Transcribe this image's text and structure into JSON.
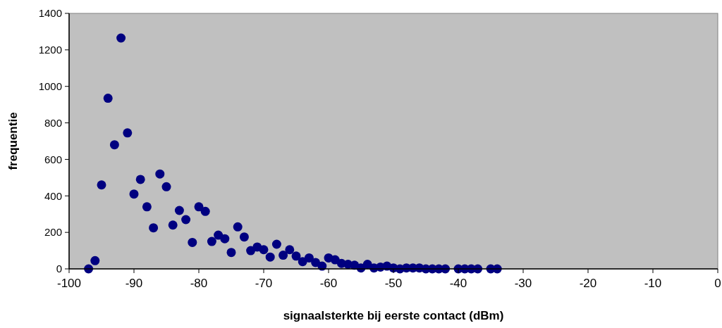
{
  "chart_data": {
    "type": "scatter",
    "xlabel": "signaalsterkte bij eerste contact (dBm)",
    "ylabel": "frequentie",
    "x": [
      -97,
      -96,
      -95,
      -94,
      -93,
      -92,
      -91,
      -90,
      -89,
      -88,
      -87,
      -86,
      -85,
      -84,
      -83,
      -82,
      -81,
      -80,
      -79,
      -78,
      -77,
      -76,
      -75,
      -74,
      -73,
      -72,
      -71,
      -70,
      -69,
      -68,
      -67,
      -66,
      -65,
      -64,
      -63,
      -62,
      -61,
      -60,
      -59,
      -58,
      -57,
      -56,
      -55,
      -54,
      -53,
      -52,
      -51,
      -50,
      -49,
      -48,
      -47,
      -46,
      -45,
      -44,
      -43,
      -42,
      -40,
      -39,
      -38,
      -37,
      -35,
      -34
    ],
    "series": [
      {
        "color": "#000080",
        "values": [
          0,
          45,
          460,
          935,
          680,
          1265,
          745,
          410,
          490,
          340,
          225,
          520,
          450,
          240,
          320,
          270,
          145,
          340,
          315,
          150,
          185,
          165,
          90,
          230,
          175,
          100,
          120,
          105,
          65,
          135,
          75,
          105,
          70,
          40,
          60,
          35,
          15,
          60,
          50,
          30,
          25,
          20,
          5,
          25,
          5,
          10,
          15,
          5,
          0,
          5,
          5,
          5,
          0,
          0,
          0,
          0,
          0,
          0,
          0,
          0,
          0,
          0
        ]
      }
    ],
    "xlim": [
      -100,
      0
    ],
    "xticks": [
      -100,
      -90,
      -80,
      -70,
      -60,
      -50,
      -40,
      -30,
      -20,
      -10,
      0
    ],
    "ylim": [
      0,
      1400
    ],
    "yticks": [
      0,
      200,
      400,
      600,
      800,
      1000,
      1200,
      1400
    ],
    "grid": false,
    "marker": "circle"
  }
}
